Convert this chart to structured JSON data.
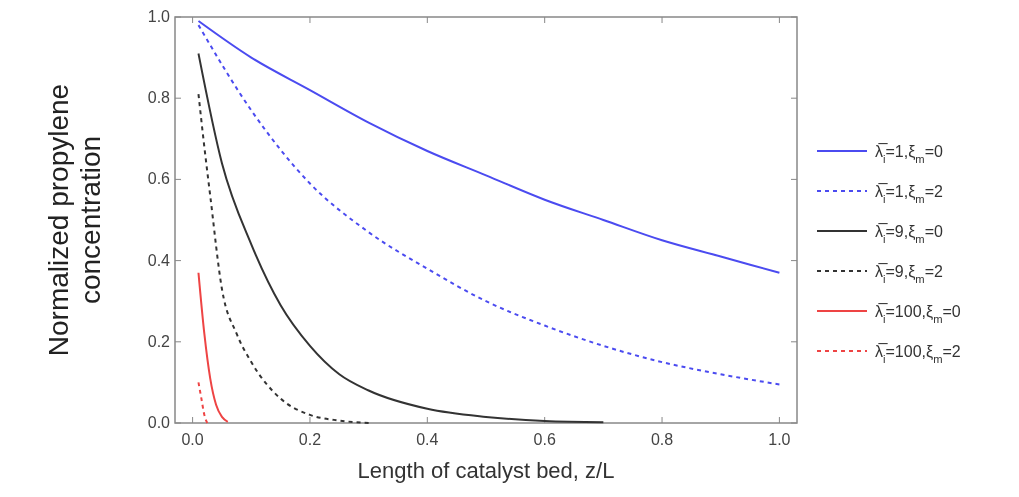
{
  "chart_data": {
    "type": "line",
    "xlabel": "Length of catalyst bed, z/L",
    "ylabel": "Normalized propylene\nconcentration",
    "xlim": [
      -0.03,
      1.03
    ],
    "ylim": [
      0,
      1.0
    ],
    "xticks": [
      {
        "value": 0,
        "label": "0.0"
      },
      0.2,
      0.4,
      0.6,
      0.8,
      {
        "value": 1,
        "label": "1.0"
      }
    ],
    "yticks": [
      {
        "value": 0,
        "label": "0.0"
      },
      0.2,
      0.4,
      0.6,
      0.8,
      {
        "value": 1,
        "label": "1.0"
      }
    ],
    "grid": false,
    "legend": "right",
    "series": [
      {
        "name": "λ̅$_{i}$=1,ξ$_{m}$=0",
        "color": "#4b4bf0",
        "line_style": "solid",
        "x": [
          0.01,
          0.1,
          0.2,
          0.3,
          0.4,
          0.5,
          0.6,
          0.7,
          0.8,
          0.9,
          1.0
        ],
        "values": [
          0.99,
          0.9,
          0.82,
          0.74,
          0.67,
          0.61,
          0.55,
          0.5,
          0.45,
          0.41,
          0.37
        ]
      },
      {
        "name": "λ̅$_{i}$=1,ξ$_{m}$=2",
        "color": "#4b4bf0",
        "line_style": "dashed",
        "x": [
          0.01,
          0.1,
          0.2,
          0.3,
          0.4,
          0.5,
          0.6,
          0.7,
          0.8,
          0.9,
          1.0
        ],
        "values": [
          0.98,
          0.77,
          0.59,
          0.47,
          0.38,
          0.3,
          0.24,
          0.19,
          0.15,
          0.12,
          0.095
        ]
      },
      {
        "name": "λ̅$_{i}$=9,ξ$_{m}$=0",
        "color": "#333333",
        "line_style": "solid",
        "x": [
          0.01,
          0.05,
          0.1,
          0.15,
          0.2,
          0.25,
          0.3,
          0.4,
          0.5,
          0.6,
          0.7
        ],
        "values": [
          0.91,
          0.64,
          0.44,
          0.29,
          0.19,
          0.12,
          0.08,
          0.035,
          0.015,
          0.005,
          0.002
        ]
      },
      {
        "name": "λ̅$_{i}$=9,ξ$_{m}$=2",
        "color": "#333333",
        "line_style": "dashed",
        "x": [
          0.01,
          0.02,
          0.03,
          0.05,
          0.075,
          0.1,
          0.15,
          0.2,
          0.25,
          0.3
        ],
        "values": [
          0.81,
          0.68,
          0.56,
          0.33,
          0.22,
          0.15,
          0.06,
          0.02,
          0.006,
          0
        ]
      },
      {
        "name": "λ̅$_{i}$=100,ξ$_{m}$=0",
        "color": "#ee4444",
        "line_style": "solid",
        "x": [
          0.01,
          0.02,
          0.03,
          0.04,
          0.05,
          0.06
        ],
        "values": [
          0.37,
          0.22,
          0.11,
          0.045,
          0.015,
          0.003
        ]
      },
      {
        "name": "λ̅$_{i}$=100,ξ$_{m}$=2",
        "color": "#ee4444",
        "line_style": "dashed",
        "x": [
          0.01,
          0.015,
          0.02,
          0.025
        ],
        "values": [
          0.1,
          0.06,
          0.02,
          0
        ]
      }
    ]
  }
}
